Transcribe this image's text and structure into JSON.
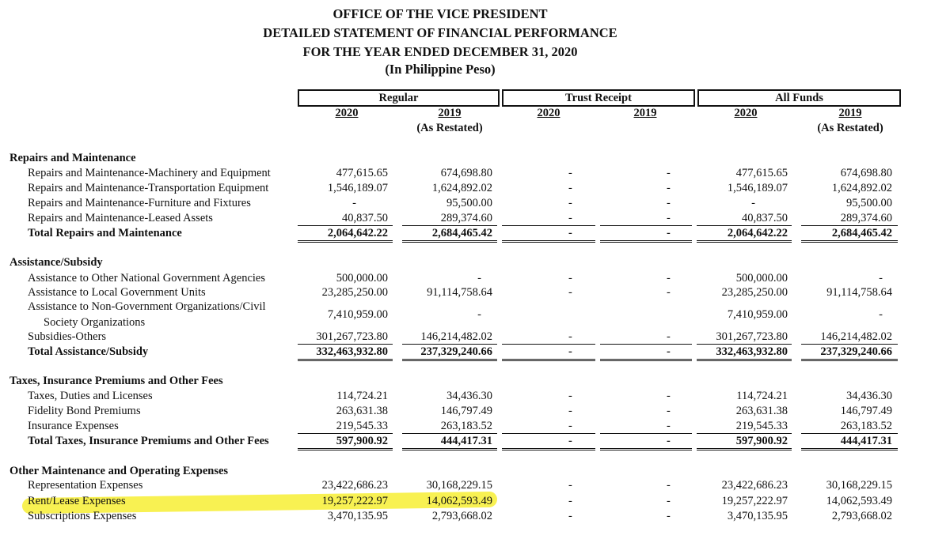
{
  "header": {
    "line1": "OFFICE OF THE VICE PRESIDENT",
    "line2": "DETAILED STATEMENT OF FINANCIAL PERFORMANCE",
    "line3": "FOR THE YEAR ENDED DECEMBER 31, 2020",
    "line4": "(In Philippine Peso)"
  },
  "groups": {
    "regular": "Regular",
    "trust": "Trust Receipt",
    "all": "All Funds"
  },
  "years": {
    "y2020": "2020",
    "y2019": "2019",
    "restated": "(As Restated)"
  },
  "dash": "-",
  "sections": {
    "repairs": {
      "title": "Repairs and Maintenance",
      "rows": [
        {
          "label": "Repairs and Maintenance-Machinery and Equipment",
          "r2020": "477,615.65",
          "r2019": "674,698.80",
          "a2020": "477,615.65",
          "a2019": "674,698.80"
        },
        {
          "label": "Repairs and Maintenance-Transportation Equipment",
          "r2020": "1,546,189.07",
          "r2019": "1,624,892.02",
          "a2020": "1,546,189.07",
          "a2019": "1,624,892.02"
        },
        {
          "label": "Repairs and Maintenance-Furniture and Fixtures",
          "r2020": "-",
          "r2019": "95,500.00",
          "a2020": "-",
          "a2019": "95,500.00"
        },
        {
          "label": "Repairs and Maintenance-Leased Assets",
          "r2020": "40,837.50",
          "r2019": "289,374.60",
          "a2020": "40,837.50",
          "a2019": "289,374.60"
        }
      ],
      "total": {
        "label": "Total Repairs and Maintenance",
        "r2020": "2,064,642.22",
        "r2019": "2,684,465.42",
        "a2020": "2,064,642.22",
        "a2019": "2,684,465.42"
      }
    },
    "assistance": {
      "title": "Assistance/Subsidy",
      "rows": [
        {
          "label": "Assistance to Other National Government Agencies",
          "r2020": "500,000.00",
          "r2019": "-",
          "a2020": "500,000.00",
          "a2019": "-"
        },
        {
          "label": "Assistance to Local Government Units",
          "r2020": "23,285,250.00",
          "r2019": "91,114,758.64",
          "a2020": "23,285,250.00",
          "a2019": "91,114,758.64"
        },
        {
          "label": "Assistance to Non-Government Organizations/Civil",
          "label2": "Society Organizations",
          "r2020": "7,410,959.00",
          "r2019": "-",
          "a2020": "7,410,959.00",
          "a2019": "-"
        },
        {
          "label": "Subsidies-Others",
          "r2020": "301,267,723.80",
          "r2019": "146,214,482.02",
          "a2020": "301,267,723.80",
          "a2019": "146,214,482.02"
        }
      ],
      "total": {
        "label": "Total Assistance/Subsidy",
        "r2020": "332,463,932.80",
        "r2019": "237,329,240.66",
        "a2020": "332,463,932.80",
        "a2019": "237,329,240.66"
      }
    },
    "taxes": {
      "title": "Taxes, Insurance Premiums and Other Fees",
      "rows": [
        {
          "label": "Taxes, Duties and Licenses",
          "r2020": "114,724.21",
          "r2019": "34,436.30",
          "a2020": "114,724.21",
          "a2019": "34,436.30"
        },
        {
          "label": "Fidelity Bond Premiums",
          "r2020": "263,631.38",
          "r2019": "146,797.49",
          "a2020": "263,631.38",
          "a2019": "146,797.49"
        },
        {
          "label": "Insurance Expenses",
          "r2020": "219,545.33",
          "r2019": "263,183.52",
          "a2020": "219,545.33",
          "a2019": "263,183.52"
        }
      ],
      "total": {
        "label": "Total Taxes, Insurance Premiums and Other Fees",
        "r2020": "597,900.92",
        "r2019": "444,417.31",
        "a2020": "597,900.92",
        "a2019": "444,417.31"
      }
    },
    "other": {
      "title": "Other Maintenance and Operating Expenses",
      "rows": [
        {
          "label": "Representation Expenses",
          "r2020": "23,422,686.23",
          "r2019": "30,168,229.15",
          "a2020": "23,422,686.23",
          "a2019": "30,168,229.15"
        },
        {
          "label": "Rent/Lease Expenses",
          "r2020": "19,257,222.97",
          "r2019": "14,062,593.49",
          "a2020": "19,257,222.97",
          "a2019": "14,062,593.49"
        },
        {
          "label": "Subscriptions Expenses",
          "r2020": "3,470,135.95",
          "r2019": "2,793,668.02",
          "a2020": "3,470,135.95",
          "a2019": "2,793,668.02"
        }
      ]
    }
  },
  "highlight_color": "#f7ee34"
}
